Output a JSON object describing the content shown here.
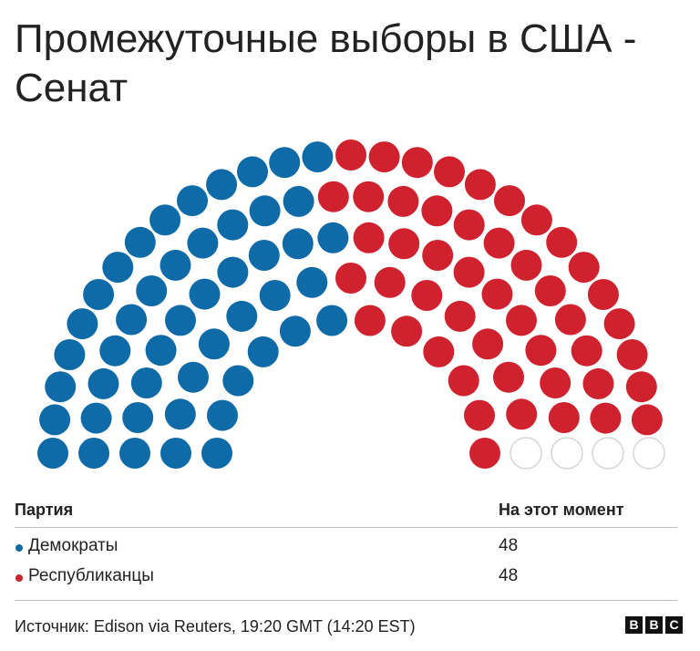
{
  "title": "Промежуточные выборы в США - Сенат",
  "colors": {
    "dem": "#0f6aa8",
    "rep": "#d0222e",
    "empty_fill": "#ffffff",
    "empty_stroke": "#d5d5d5"
  },
  "chart_data": {
    "type": "parliament",
    "total_seats": 100,
    "series": [
      {
        "name": "Демократы",
        "values": [
          48
        ],
        "color": "#0f6aa8"
      },
      {
        "name": "Республиканцы",
        "values": [
          48
        ],
        "color": "#d0222e"
      }
    ],
    "undecided": 4
  },
  "table": {
    "col_party": "Партия",
    "col_now": "На этот момент",
    "rows": [
      {
        "party": "Демократы",
        "value": "48",
        "color": "#0f6aa8"
      },
      {
        "party": "Республиканцы",
        "value": "48",
        "color": "#d0222e"
      }
    ]
  },
  "source": "Источник: Edison via Reuters, 19:20 GMT (14:20 EST)",
  "logo": [
    "B",
    "B",
    "C"
  ]
}
